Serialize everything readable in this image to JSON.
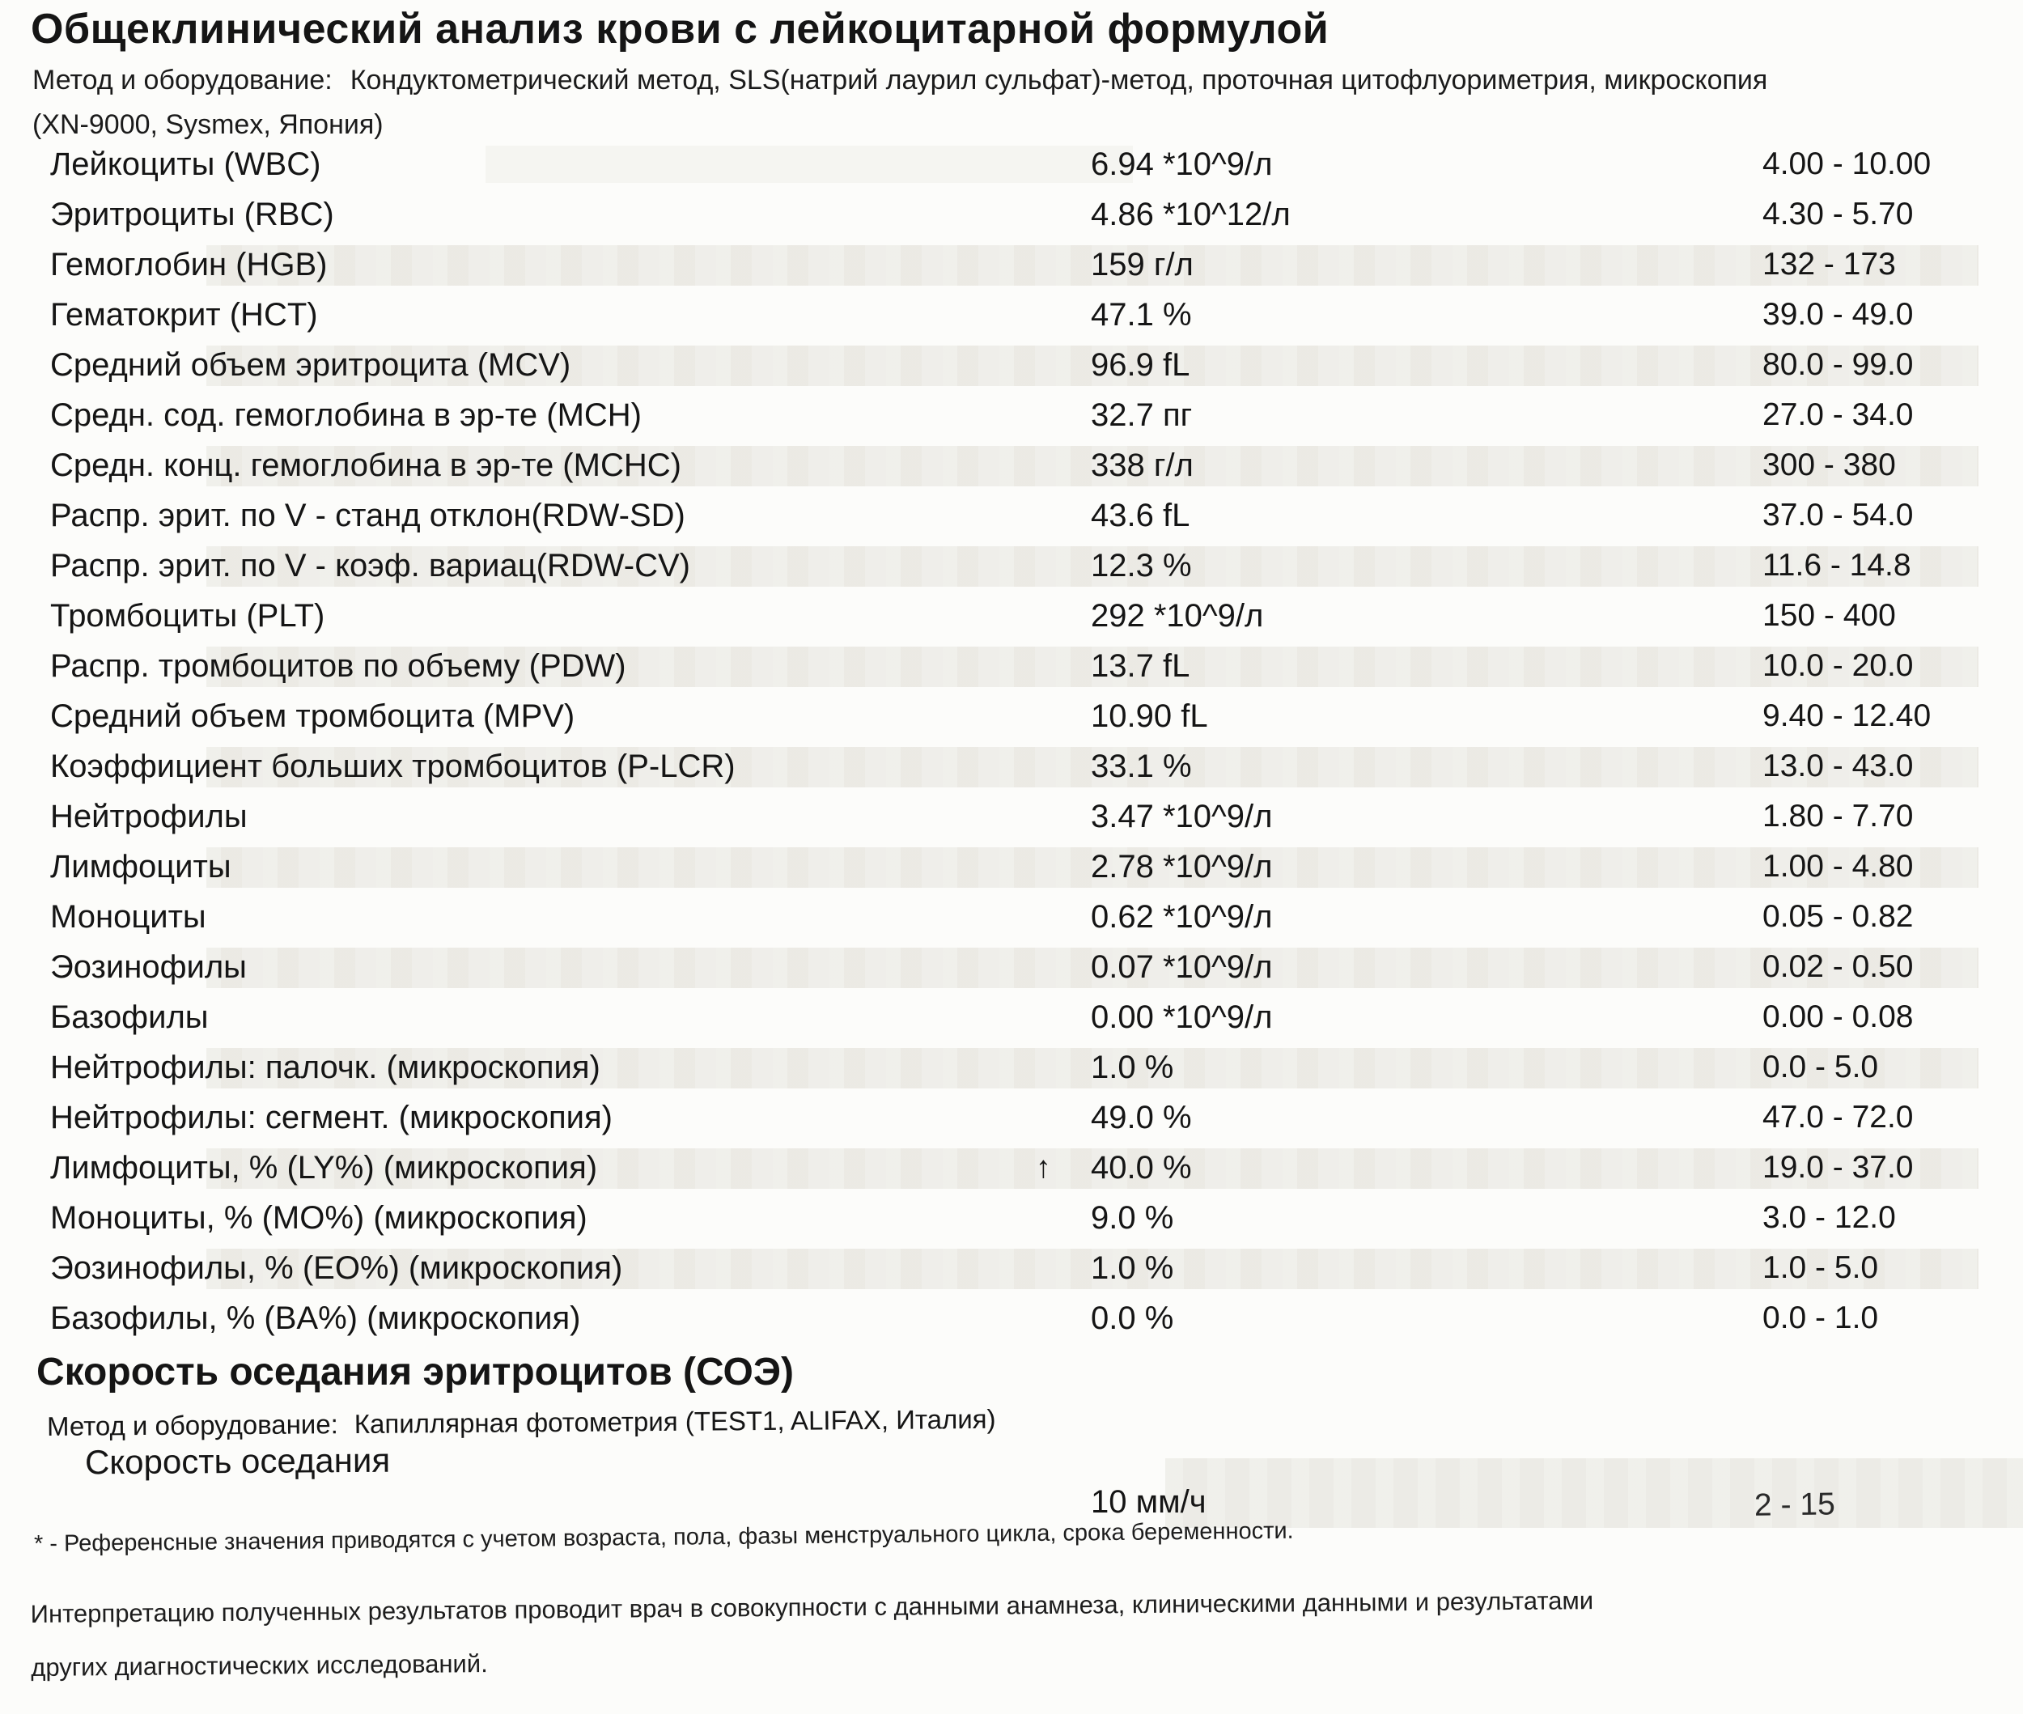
{
  "report": {
    "title": "Общеклинический анализ крови с лейкоцитарной формулой",
    "method": {
      "label": "Метод и оборудование:",
      "text": "Кондуктометрический метод, SLS(натрий лаурил сульфат)-метод, проточная цитофлуориметрия, микроскопия",
      "equipment": "(XN-9000, Sysmex, Япония)"
    },
    "rows": [
      {
        "name": "Лейкоциты (WBC)",
        "flag": "",
        "value": "6.94 *10^9/л",
        "range": "4.00 - 10.00"
      },
      {
        "name": "Эритроциты (RBC)",
        "flag": "",
        "value": "4.86 *10^12/л",
        "range": "4.30 - 5.70"
      },
      {
        "name": "Гемоглобин (HGB)",
        "flag": "",
        "value": "159 г/л",
        "range": "132 - 173"
      },
      {
        "name": "Гематокрит (HCT)",
        "flag": "",
        "value": "47.1 %",
        "range": "39.0 - 49.0"
      },
      {
        "name": "Средний объем эритроцита (MCV)",
        "flag": "",
        "value": "96.9 fL",
        "range": "80.0 - 99.0"
      },
      {
        "name": "Средн. сод. гемоглобина в эр-те (MCH)",
        "flag": "",
        "value": "32.7 пг",
        "range": "27.0 - 34.0"
      },
      {
        "name": "Средн. конц. гемоглобина в эр-те (MCHC)",
        "flag": "",
        "value": "338 г/л",
        "range": "300 - 380"
      },
      {
        "name": "Распр. эрит. по V - станд отклон(RDW-SD)",
        "flag": "",
        "value": "43.6 fL",
        "range": "37.0 - 54.0"
      },
      {
        "name": "Распр. эрит. по V - коэф. вариац(RDW-CV)",
        "flag": "",
        "value": "12.3 %",
        "range": "11.6 - 14.8"
      },
      {
        "name": "Тромбоциты (PLT)",
        "flag": "",
        "value": "292 *10^9/л",
        "range": "150 - 400"
      },
      {
        "name": "Распр. тромбоцитов по объему (PDW)",
        "flag": "",
        "value": "13.7 fL",
        "range": "10.0 - 20.0"
      },
      {
        "name": "Средний объем тромбоцита (MPV)",
        "flag": "",
        "value": "10.90 fL",
        "range": "9.40 - 12.40"
      },
      {
        "name": "Коэффициент больших тромбоцитов (P-LCR)",
        "flag": "",
        "value": "33.1 %",
        "range": "13.0 - 43.0"
      },
      {
        "name": "Нейтрофилы",
        "flag": "",
        "value": "3.47 *10^9/л",
        "range": "1.80 - 7.70"
      },
      {
        "name": "Лимфоциты",
        "flag": "",
        "value": "2.78 *10^9/л",
        "range": "1.00 - 4.80"
      },
      {
        "name": "Моноциты",
        "flag": "",
        "value": "0.62 *10^9/л",
        "range": "0.05 - 0.82"
      },
      {
        "name": "Эозинофилы",
        "flag": "",
        "value": "0.07 *10^9/л",
        "range": "0.02 - 0.50"
      },
      {
        "name": "Базофилы",
        "flag": "",
        "value": "0.00 *10^9/л",
        "range": "0.00 - 0.08"
      },
      {
        "name": "Нейтрофилы: палочк. (микроскопия)",
        "flag": "",
        "value": "1.0 %",
        "range": "0.0 - 5.0"
      },
      {
        "name": "Нейтрофилы: сегмент. (микроскопия)",
        "flag": "",
        "value": "49.0 %",
        "range": "47.0 - 72.0"
      },
      {
        "name": "Лимфоциты, % (LY%) (микроскопия)",
        "flag": "↑",
        "value": "40.0 %",
        "range": "19.0 - 37.0"
      },
      {
        "name": "Моноциты, % (MO%) (микроскопия)",
        "flag": "",
        "value": "9.0 %",
        "range": "3.0 - 12.0"
      },
      {
        "name": "Эозинофилы, % (EO%) (микроскопия)",
        "flag": "",
        "value": "1.0 %",
        "range": "1.0 - 5.0"
      },
      {
        "name": "Базофилы, % (BA%) (микроскопия)",
        "flag": "",
        "value": "0.0 %",
        "range": "0.0 - 1.0"
      }
    ],
    "esr": {
      "title": "Скорость оседания эритроцитов (СОЭ)",
      "method": {
        "label": "Метод и оборудование:",
        "text": "Капиллярная фотометрия (TEST1, ALIFAX, Италия)"
      },
      "row": {
        "name": "Скорость оседания",
        "value": "10 мм/ч",
        "range": "2 - 15"
      }
    },
    "footnotes": [
      "* - Референсные значения приводятся с учетом возраста, пола, фазы менструального цикла, срока беременности.",
      "Интерпретацию полученных результатов проводит врач в совокупности с данными анамнеза, клиническими данными и результатами других диагностических исследований."
    ]
  }
}
